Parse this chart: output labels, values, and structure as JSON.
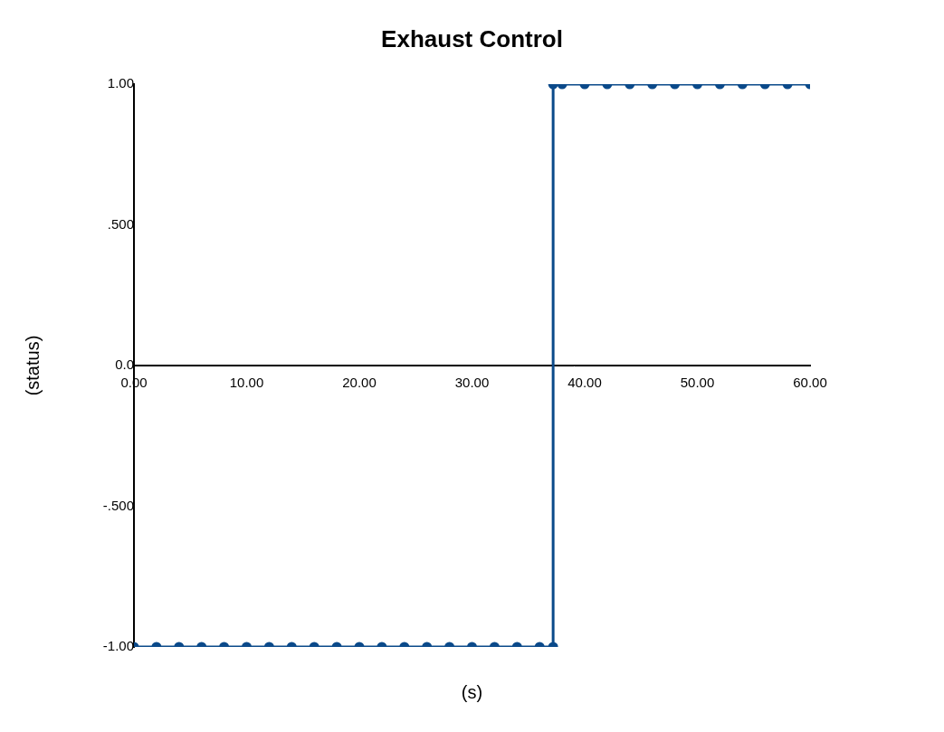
{
  "chart_data": {
    "type": "line",
    "title": "Exhaust Control",
    "xlabel": "(s)",
    "ylabel": "(status)",
    "x": [
      0,
      2,
      4,
      6,
      8,
      10,
      12,
      14,
      16,
      18,
      20,
      22,
      24,
      26,
      28,
      30,
      32,
      34,
      36,
      37.2,
      37.2,
      38,
      40,
      42,
      44,
      46,
      48,
      50,
      52,
      54,
      56,
      58,
      60
    ],
    "series": [
      {
        "color": "#0b4a8a",
        "values": [
          -1,
          -1,
          -1,
          -1,
          -1,
          -1,
          -1,
          -1,
          -1,
          -1,
          -1,
          -1,
          -1,
          -1,
          -1,
          -1,
          -1,
          -1,
          -1,
          -1,
          1,
          1,
          1,
          1,
          1,
          1,
          1,
          1,
          1,
          1,
          1,
          1,
          1
        ]
      }
    ],
    "xlim": [
      0,
      60
    ],
    "xticks": [
      {
        "value": 0,
        "label": "0.00"
      },
      {
        "value": 10,
        "label": "10.00"
      },
      {
        "value": 20,
        "label": "20.00"
      },
      {
        "value": 30,
        "label": "30.00"
      },
      {
        "value": 40,
        "label": "40.00"
      },
      {
        "value": 50,
        "label": "50.00"
      },
      {
        "value": 60,
        "label": "60.00"
      }
    ],
    "ylim": [
      -1,
      1
    ],
    "yticks": [
      {
        "value": -1,
        "label": "-1.00"
      },
      {
        "value": -0.5,
        "label": "-.500"
      },
      {
        "value": 0,
        "label": "0.0"
      },
      {
        "value": 0.5,
        "label": ".500"
      },
      {
        "value": 1,
        "label": "1.00"
      }
    ],
    "grid": false,
    "legend": false,
    "marker": "circle",
    "line_style": "solid"
  }
}
